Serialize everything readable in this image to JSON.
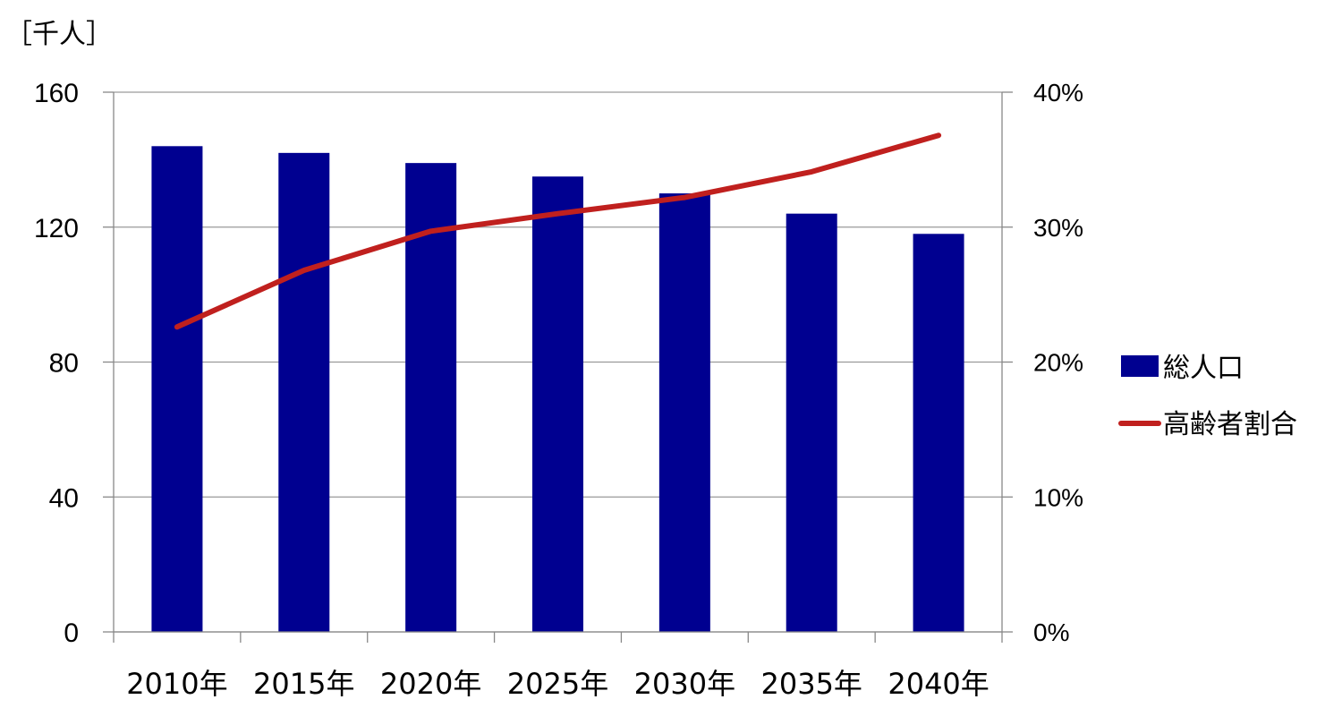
{
  "chart_data": {
    "type": "bar+line",
    "y_unit_label": "［千人］",
    "categories": [
      "2010年",
      "2015年",
      "2020年",
      "2025年",
      "2030年",
      "2035年",
      "2040年"
    ],
    "series": [
      {
        "name": "総人口",
        "type": "bar",
        "axis": "left",
        "color": "#000090",
        "values": [
          144,
          142,
          139,
          135,
          130,
          124,
          118
        ]
      },
      {
        "name": "高齢者割合",
        "type": "line",
        "axis": "right",
        "color": "#C0201E",
        "values": [
          22.6,
          26.8,
          29.7,
          31.0,
          32.2,
          34.1,
          36.8
        ]
      }
    ],
    "y_left": {
      "min": 0,
      "max": 160,
      "ticks": [
        0,
        40,
        80,
        120,
        160
      ]
    },
    "y_right": {
      "min": 0,
      "max": 40,
      "ticks": [
        "0%",
        "10%",
        "20%",
        "30%",
        "40%"
      ]
    },
    "grid": true,
    "legend_position": "right"
  }
}
